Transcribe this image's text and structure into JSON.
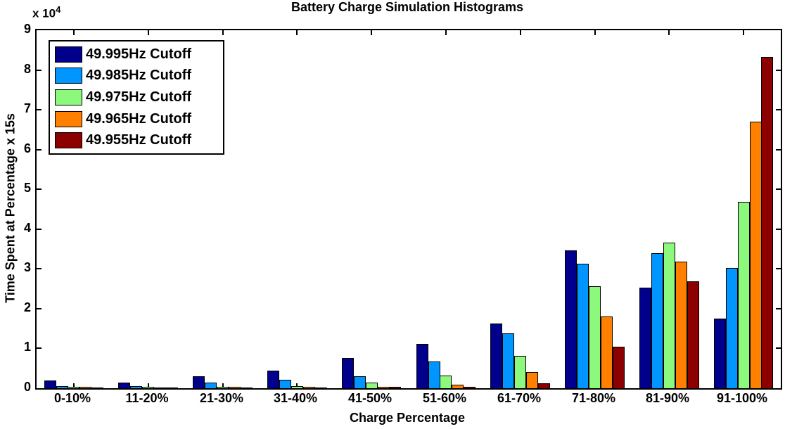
{
  "title": "Battery Charge Simulation Histograms",
  "axes": {
    "exponent_label": "x 10",
    "exponent_power": "4",
    "xlabel": "Charge Percentage",
    "ylabel": "Time Spent at Percentage x 15s",
    "ytick_labels": [
      "0",
      "1",
      "2",
      "3",
      "4",
      "5",
      "6",
      "7",
      "8",
      "9"
    ]
  },
  "chart_data": {
    "type": "bar",
    "title": "Battery Charge Simulation Histograms",
    "xlabel": "Charge Percentage",
    "ylabel": "Time Spent at Percentage x 15s",
    "y_scale": "ticks shown as 0-9 with x 10^4 multiplier",
    "ylim": [
      0,
      90000
    ],
    "grid": false,
    "legend_position": "upper-left",
    "categories": [
      "0-10%",
      "11-20%",
      "21-30%",
      "31-40%",
      "41-50%",
      "51-60%",
      "61-70%",
      "71-80%",
      "81-90%",
      "91-100%"
    ],
    "series": [
      {
        "name": "49.995Hz Cutoff",
        "color": "#00008C",
        "values": [
          1800,
          1200,
          2800,
          4300,
          7400,
          10900,
          16100,
          34400,
          25100,
          17300
        ]
      },
      {
        "name": "49.985Hz Cutoff",
        "color": "#0095FF",
        "values": [
          400,
          300,
          1200,
          1900,
          2800,
          6500,
          13700,
          31100,
          33700,
          30000
        ]
      },
      {
        "name": "49.975Hz Cutoff",
        "color": "#8CF87C",
        "values": [
          200,
          100,
          200,
          400,
          1200,
          3000,
          7900,
          25400,
          36500,
          46700
        ]
      },
      {
        "name": "49.965Hz Cutoff",
        "color": "#FF8000",
        "values": [
          100,
          50,
          100,
          100,
          200,
          700,
          3900,
          17800,
          31700,
          66800
        ]
      },
      {
        "name": "49.955Hz Cutoff",
        "color": "#8C0000",
        "values": [
          50,
          50,
          50,
          50,
          100,
          100,
          1100,
          10200,
          26700,
          83100
        ]
      }
    ]
  }
}
